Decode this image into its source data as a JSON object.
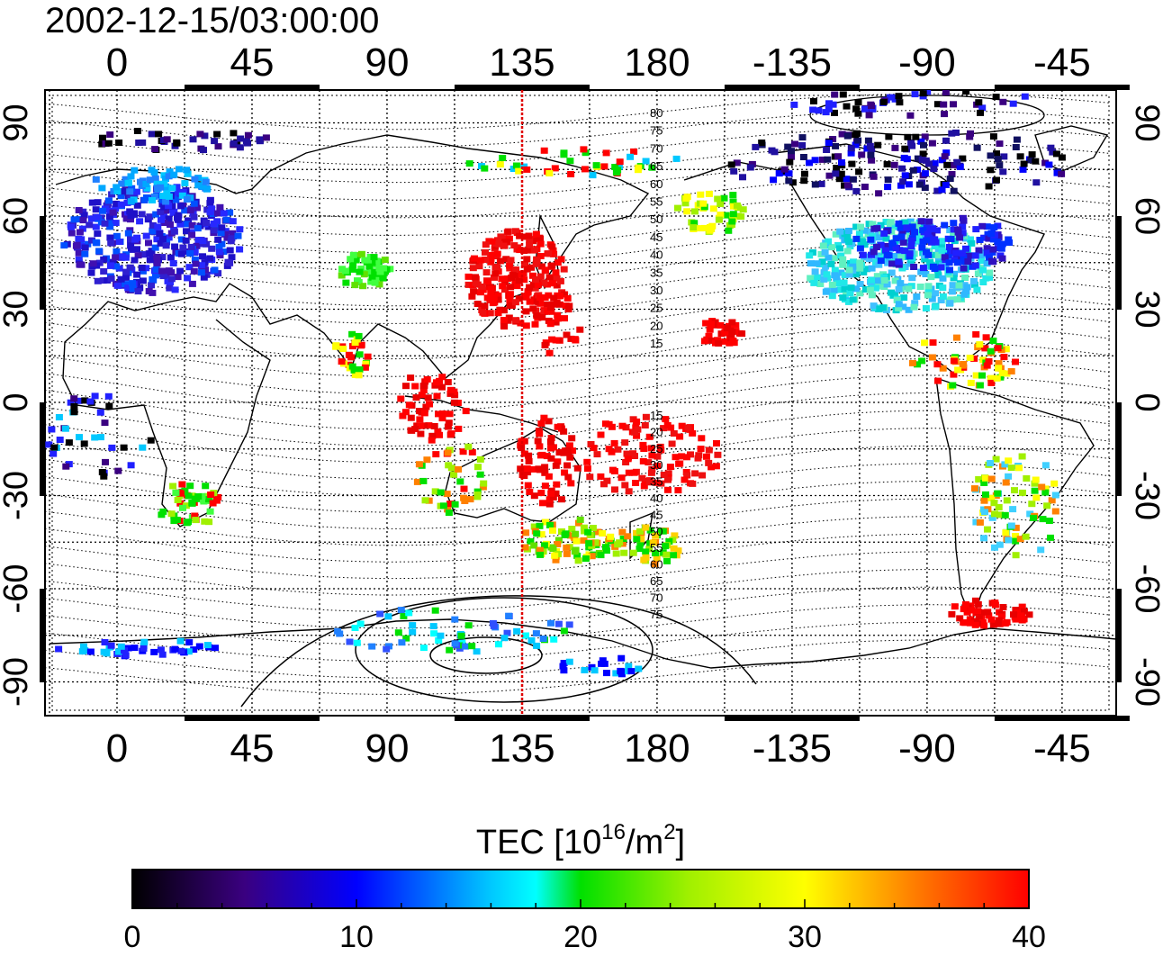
{
  "title": "2002-12-15/03:00:00",
  "map": {
    "lon_ticks": [
      "0",
      "45",
      "90",
      "135",
      "180",
      "-135",
      "-90",
      "-45"
    ],
    "lat_ticks": [
      "90",
      "60",
      "30",
      "0",
      "-30",
      "-60",
      "-90"
    ],
    "meridian_marker_lon": "135",
    "contour_labels_north": [
      "80",
      "75",
      "70",
      "65",
      "60",
      "55",
      "50",
      "45",
      "40",
      "35",
      "30",
      "25",
      "20",
      "15"
    ],
    "contour_labels_south": [
      "15",
      "20",
      "25",
      "30",
      "35",
      "40",
      "45",
      "50",
      "55",
      "60",
      "65",
      "70",
      "75"
    ],
    "colors": {
      "meridian_line": "#e00000",
      "coast": "#000000",
      "grid": "#000000"
    }
  },
  "colorbar": {
    "title_prefix": "TEC  [10",
    "title_sup1": "16",
    "title_mid": "/m",
    "title_sup2": "2",
    "title_suffix": "]",
    "tick_labels": [
      "0",
      "10",
      "20",
      "30",
      "40"
    ],
    "range": [
      0,
      40
    ],
    "colormap": [
      "#000000",
      "#3a0080",
      "#0000ff",
      "#00ffff",
      "#00e000",
      "#ffff00",
      "#ff8000",
      "#ff0000"
    ]
  }
}
